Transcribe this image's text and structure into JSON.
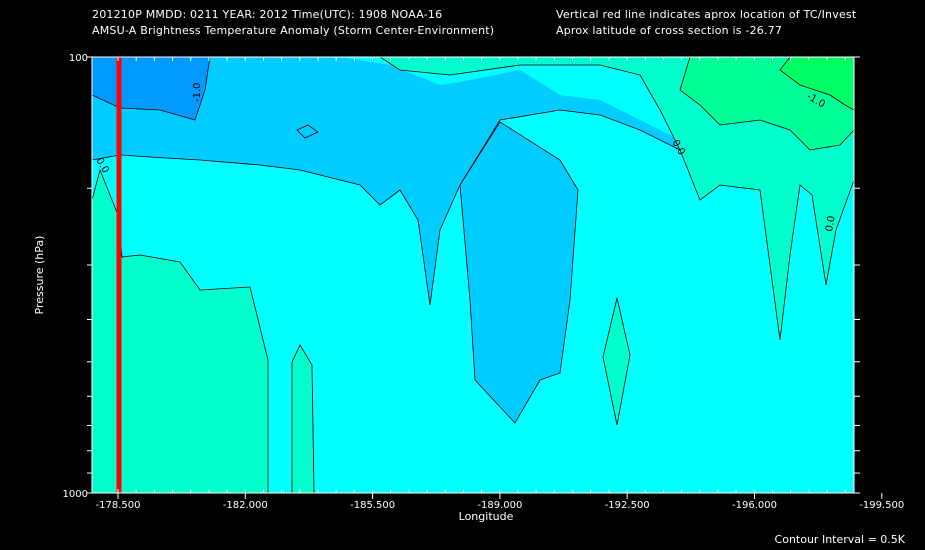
{
  "header": {
    "line1_left": "201210P  MMDD: 0211 YEAR: 2012 Time(UTC): 1908 NOAA-16",
    "line2_left": "AMSU-A Brightness Temperature Anomaly (Storm Center-Environment)",
    "line1_right": "Vertical red line indicates aprox location of TC/Invest",
    "line2_right": "Aprox latitude of cross section is -26.77"
  },
  "footer": {
    "contour_interval": "Contour Interval = 0.5K"
  },
  "chart_data": {
    "type": "contour",
    "xlabel": "Longitude",
    "ylabel": "Pressure (hPa)",
    "xlim": [
      -178.5,
      -199.5
    ],
    "ylim": [
      1000,
      100
    ],
    "yscale": "log",
    "x_ticks": [
      "-178.500",
      "-182.000",
      "-185.500",
      "-189.000",
      "-192.500",
      "-196.000",
      "-199.500"
    ],
    "y_ticks": [
      "100",
      "1000"
    ],
    "storm_longitude": -179.0,
    "contour_labels": [
      "-1.0",
      "0.0",
      "0.0",
      "0.0",
      "-1.0"
    ],
    "colors": {
      "background": "#000000",
      "level_neg_1_5": "#0099ff",
      "level_neg_1_0": "#00ccff",
      "level_neg_0_5": "#00ffff",
      "level_0_0": "#00ffcc",
      "level_0_5": "#00ff99",
      "level_1_0": "#00ff66",
      "storm_line": "#ff0000"
    }
  }
}
